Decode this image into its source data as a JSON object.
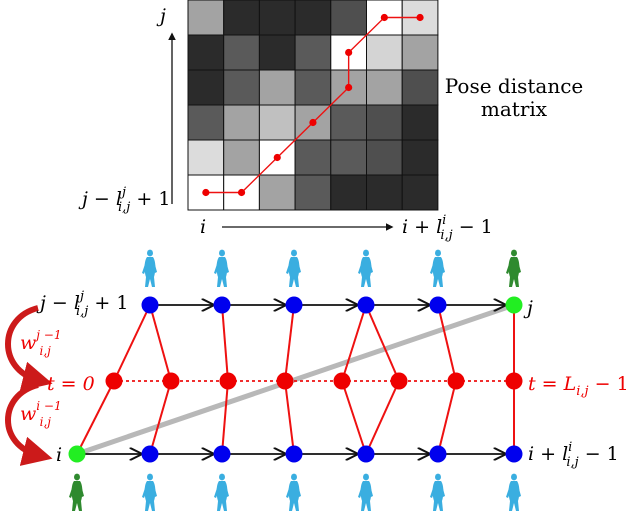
{
  "matrix": {
    "grid": [
      [
        "#a3a3a3",
        "#2b2b2b",
        "#2b2b2b",
        "#2b2b2b",
        "#4f4f4f",
        "#ffffff",
        "#dcdcdc"
      ],
      [
        "#2b2b2b",
        "#5a5a5a",
        "#2b2b2b",
        "#5a5a5a",
        "#ffffff",
        "#d4d4d4",
        "#a3a3a3"
      ],
      [
        "#2b2b2b",
        "#5a5a5a",
        "#a3a3a3",
        "#5a5a5a",
        "#a3a3a3",
        "#a3a3a3",
        "#4f4f4f"
      ],
      [
        "#5a5a5a",
        "#a3a3a3",
        "#c0c0c0",
        "#a3a3a3",
        "#5a5a5a",
        "#4f4f4f",
        "#2b2b2b"
      ],
      [
        "#dcdcdc",
        "#a3a3a3",
        "#ffffff",
        "#5a5a5a",
        "#5a5a5a",
        "#4f4f4f",
        "#2b2b2b"
      ],
      [
        "#ffffff",
        "#ffffff",
        "#a3a3a3",
        "#5a5a5a",
        "#2b2b2b",
        "#2b2b2b",
        "#2b2b2b"
      ]
    ],
    "path_cells": [
      [
        0,
        5
      ],
      [
        1,
        5
      ],
      [
        2,
        4
      ],
      [
        3,
        3
      ],
      [
        4,
        2
      ],
      [
        4,
        1
      ],
      [
        5,
        0
      ],
      [
        6,
        0
      ]
    ],
    "label_j": "j",
    "label_left_row": "j − l",
    "label_left_row_sup": "j",
    "label_left_row_sub": "i,j",
    "label_left_row_tail": " + 1",
    "label_i": "i",
    "label_right_col": "i + l",
    "label_right_col_sup": "i",
    "label_right_col_sub": "i,j",
    "label_right_col_tail": " − 1",
    "title_line1": "Pose distance",
    "title_line2": "matrix"
  },
  "graph": {
    "label_top_left": "j − l",
    "label_top_left_sup": "j",
    "label_top_left_sub": "i,j",
    "label_top_left_tail": " + 1",
    "label_top_right": "j",
    "label_bottom_left": "i",
    "label_bottom_right": "i + l",
    "label_bottom_right_sup": "i",
    "label_bottom_right_sub": "i,j",
    "label_bottom_right_tail": " − 1",
    "label_t0": "t = 0",
    "label_tL": "t = L",
    "label_tL_sub": "i,j",
    "label_tL_tail": " − 1",
    "weight_top": "w",
    "weight_top_sup": "j −1",
    "weight_top_sub": "i,j",
    "weight_bottom": "w",
    "weight_bottom_sup": "i −1",
    "weight_bottom_sub": "i,j",
    "colors": {
      "blue_node": "#0000ee",
      "green_node": "#22ee22",
      "red_node": "#ee0000",
      "red_edge": "#ee1111",
      "black_edge": "#111111",
      "gray_edge": "#b8b8b8",
      "figure_blue": "#3aaee0",
      "figure_green": "#2f8a2f"
    }
  }
}
